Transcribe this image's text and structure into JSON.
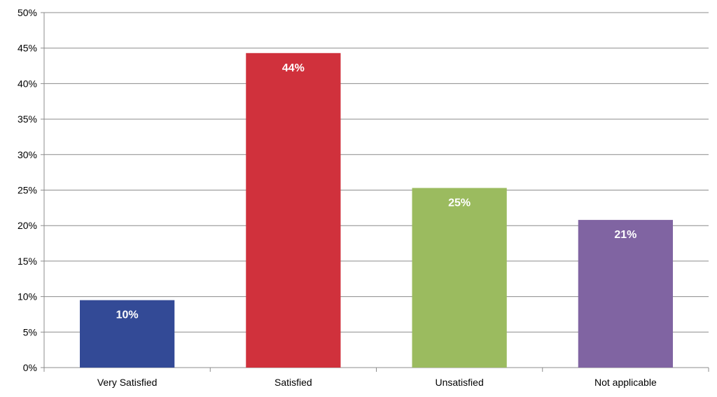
{
  "chart_data": {
    "type": "bar",
    "title": "",
    "xlabel": "",
    "ylabel": "",
    "categories": [
      "Very Satisfied",
      "Satisfied",
      "Unsatisfied",
      "Not applicable"
    ],
    "values": [
      9.5,
      44.3,
      25.3,
      20.8
    ],
    "data_labels": [
      "10%",
      "44%",
      "25%",
      "21%"
    ],
    "colors": [
      "#334a96",
      "#d0313c",
      "#9bbb5f",
      "#8064a2"
    ],
    "ylim": [
      0,
      50
    ],
    "y_ticks": [
      0,
      5,
      10,
      15,
      20,
      25,
      30,
      35,
      40,
      45,
      50
    ],
    "y_tick_labels": [
      "0%",
      "5%",
      "10%",
      "15%",
      "20%",
      "25%",
      "30%",
      "35%",
      "40%",
      "45%",
      "50%"
    ],
    "grid": true,
    "legend": "none"
  }
}
